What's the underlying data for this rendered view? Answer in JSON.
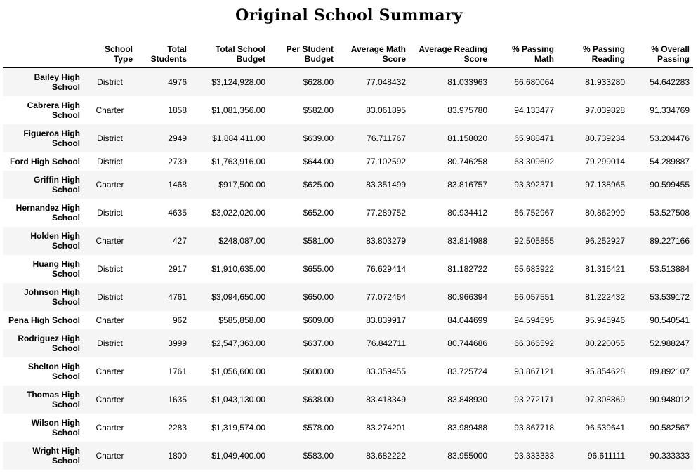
{
  "page": {
    "title": "Original School Summary"
  },
  "chart_data": {
    "type": "table",
    "title": "Original School Summary",
    "columns": [
      [
        "School",
        "Type"
      ],
      [
        "Total",
        "Students"
      ],
      [
        "Total School",
        "Budget"
      ],
      [
        "Per Student",
        "Budget"
      ],
      [
        "Average Math",
        "Score"
      ],
      [
        "Average Reading",
        "Score"
      ],
      [
        "% Passing",
        "Math"
      ],
      [
        "% Passing",
        "Reading"
      ],
      [
        "% Overall",
        "Passing"
      ]
    ],
    "rows": [
      {
        "name": [
          "Bailey High",
          "School"
        ],
        "values": [
          "District",
          "4976",
          "$3,124,928.00",
          "$628.00",
          "77.048432",
          "81.033963",
          "66.680064",
          "81.933280",
          "54.642283"
        ]
      },
      {
        "name": [
          "Cabrera High",
          "School"
        ],
        "values": [
          "Charter",
          "1858",
          "$1,081,356.00",
          "$582.00",
          "83.061895",
          "83.975780",
          "94.133477",
          "97.039828",
          "91.334769"
        ]
      },
      {
        "name": [
          "Figueroa High",
          "School"
        ],
        "values": [
          "District",
          "2949",
          "$1,884,411.00",
          "$639.00",
          "76.711767",
          "81.158020",
          "65.988471",
          "80.739234",
          "53.204476"
        ]
      },
      {
        "name": [
          "Ford High School"
        ],
        "values": [
          "District",
          "2739",
          "$1,763,916.00",
          "$644.00",
          "77.102592",
          "80.746258",
          "68.309602",
          "79.299014",
          "54.289887"
        ]
      },
      {
        "name": [
          "Griffin High",
          "School"
        ],
        "values": [
          "Charter",
          "1468",
          "$917,500.00",
          "$625.00",
          "83.351499",
          "83.816757",
          "93.392371",
          "97.138965",
          "90.599455"
        ]
      },
      {
        "name": [
          "Hernandez High",
          "School"
        ],
        "values": [
          "District",
          "4635",
          "$3,022,020.00",
          "$652.00",
          "77.289752",
          "80.934412",
          "66.752967",
          "80.862999",
          "53.527508"
        ]
      },
      {
        "name": [
          "Holden High",
          "School"
        ],
        "values": [
          "Charter",
          "427",
          "$248,087.00",
          "$581.00",
          "83.803279",
          "83.814988",
          "92.505855",
          "96.252927",
          "89.227166"
        ]
      },
      {
        "name": [
          "Huang High",
          "School"
        ],
        "values": [
          "District",
          "2917",
          "$1,910,635.00",
          "$655.00",
          "76.629414",
          "81.182722",
          "65.683922",
          "81.316421",
          "53.513884"
        ]
      },
      {
        "name": [
          "Johnson High",
          "School"
        ],
        "values": [
          "District",
          "4761",
          "$3,094,650.00",
          "$650.00",
          "77.072464",
          "80.966394",
          "66.057551",
          "81.222432",
          "53.539172"
        ]
      },
      {
        "name": [
          "Pena High School"
        ],
        "values": [
          "Charter",
          "962",
          "$585,858.00",
          "$609.00",
          "83.839917",
          "84.044699",
          "94.594595",
          "95.945946",
          "90.540541"
        ]
      },
      {
        "name": [
          "Rodriguez High",
          "School"
        ],
        "values": [
          "District",
          "3999",
          "$2,547,363.00",
          "$637.00",
          "76.842711",
          "80.744686",
          "66.366592",
          "80.220055",
          "52.988247"
        ]
      },
      {
        "name": [
          "Shelton High",
          "School"
        ],
        "values": [
          "Charter",
          "1761",
          "$1,056,600.00",
          "$600.00",
          "83.359455",
          "83.725724",
          "93.867121",
          "95.854628",
          "89.892107"
        ]
      },
      {
        "name": [
          "Thomas High",
          "School"
        ],
        "values": [
          "Charter",
          "1635",
          "$1,043,130.00",
          "$638.00",
          "83.418349",
          "83.848930",
          "93.272171",
          "97.308869",
          "90.948012"
        ]
      },
      {
        "name": [
          "Wilson High",
          "School"
        ],
        "values": [
          "Charter",
          "2283",
          "$1,319,574.00",
          "$578.00",
          "83.274201",
          "83.989488",
          "93.867718",
          "96.539641",
          "90.582567"
        ]
      },
      {
        "name": [
          "Wright High",
          "School"
        ],
        "values": [
          "Charter",
          "1800",
          "$1,049,400.00",
          "$583.00",
          "83.682222",
          "83.955000",
          "93.333333",
          "96.611111",
          "90.333333"
        ]
      }
    ]
  }
}
